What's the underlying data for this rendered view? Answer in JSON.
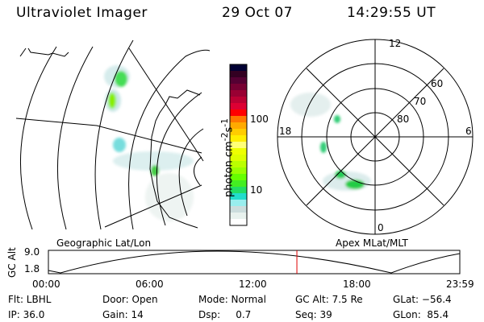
{
  "header": {
    "title": "Ultraviolet Imager",
    "date": "29 Oct 07",
    "time": "14:29:55 UT"
  },
  "colorbar": {
    "label": "photon cm",
    "label_sup1": "-2",
    "label_mid": "s",
    "label_sup2": "-1",
    "ticks": [
      "100",
      "10"
    ],
    "colors": [
      "#000033",
      "#330022",
      "#550033",
      "#770033",
      "#990033",
      "#bb0033",
      "#dd0033",
      "#ff0000",
      "#ff7700",
      "#ffaa00",
      "#ffcc00",
      "#ffee00",
      "#ffff77",
      "#eeff00",
      "#ddff00",
      "#bbff00",
      "#99ff00",
      "#66ff00",
      "#44ee22",
      "#22dd66",
      "#22ddcc",
      "#99eeee",
      "#ccdddd",
      "#e8f2ee",
      "#ffffff"
    ]
  },
  "panels": {
    "left_label": "Geographic Lat/Lon",
    "right_label": "Apex MLat/MLT",
    "polar": {
      "mlt_labels": [
        "12",
        "0",
        "18",
        "6"
      ],
      "mlat_labels": [
        "80",
        "70",
        "60"
      ]
    }
  },
  "timeline": {
    "ylabel": "GC Alt",
    "yticks": [
      "9.0",
      "1.8"
    ],
    "xticks": [
      "00:00",
      "06:00",
      "12:00",
      "18:00",
      "23:59"
    ],
    "current_fraction": 0.604
  },
  "status": {
    "row1": [
      "Flt: LBHL",
      "Door: Open",
      "Mode: Normal",
      "GC Alt: 7.5 Re",
      "GLat: −56.4"
    ],
    "row2": [
      "IP: 36.0",
      "Gain: 14",
      "Dsp:     0.7",
      "Seq: 39",
      "GLon:  85.4"
    ]
  }
}
